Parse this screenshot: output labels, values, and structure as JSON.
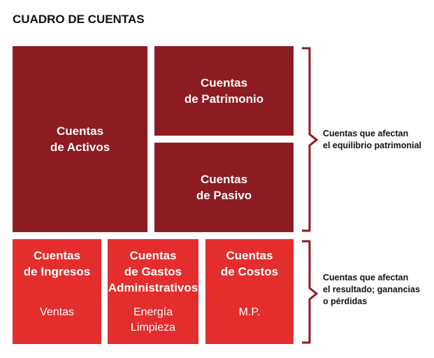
{
  "title": "CUADRO DE CUENTAS",
  "boxes": {
    "activos": [
      "Cuentas",
      "de Activos"
    ],
    "patrimonio": [
      "Cuentas",
      "de Patrimonio"
    ],
    "pasivo": [
      "Cuentas",
      "de Pasivo"
    ],
    "ingresos": {
      "label": [
        "Cuentas",
        "de Ingresos"
      ],
      "example": [
        "Ventas"
      ]
    },
    "gastos": {
      "label": [
        "Cuentas",
        "de Gastos",
        "Administrativos"
      ],
      "example": [
        "Energía",
        "Limpieza"
      ]
    },
    "costos": {
      "label": [
        "Cuentas",
        "de Costos"
      ],
      "example": [
        "M.P."
      ]
    }
  },
  "notes": {
    "patrimonial": [
      "Cuentas que afectan",
      "el equilibrio patrimonial"
    ],
    "resultado": [
      "Cuentas que afectan",
      "el resultado; ganancias",
      "o pérdidas"
    ]
  },
  "colors": {
    "dark": "#8d1b22",
    "red": "#e42d2d"
  }
}
